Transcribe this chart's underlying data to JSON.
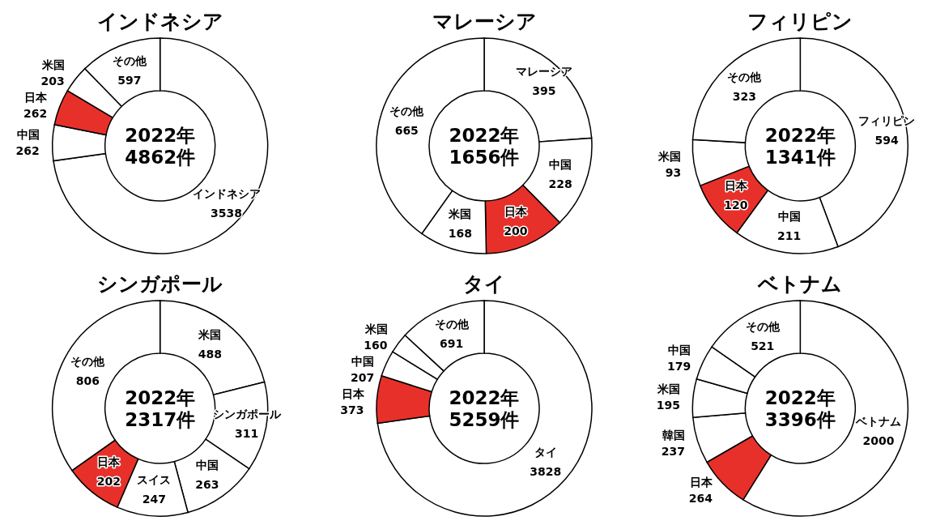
{
  "chart_data": [
    {
      "type": "donut",
      "title": "インドネシア",
      "categories": [
        "インドネシア",
        "中国",
        "日本",
        "米国",
        "その他"
      ],
      "values": [
        3538,
        262,
        262,
        203,
        597
      ],
      "colors": [
        "#ffffff",
        "#ffffff",
        "#e8302a",
        "#ffffff",
        "#ffffff"
      ],
      "data_labels": true,
      "annotations": [
        "2022年\n4862件"
      ]
    },
    {
      "type": "donut",
      "title": "マレーシア",
      "categories": [
        "マレーシア",
        "中国",
        "日本",
        "米国",
        "その他"
      ],
      "values": [
        395,
        228,
        200,
        168,
        665
      ],
      "colors": [
        "#ffffff",
        "#ffffff",
        "#e8302a",
        "#ffffff",
        "#ffffff"
      ],
      "data_labels": true,
      "annotations": [
        "2022年\n1656件"
      ]
    },
    {
      "type": "donut",
      "title": "フィリピン",
      "categories": [
        "フィリピン",
        "中国",
        "日本",
        "米国",
        "その他"
      ],
      "values": [
        594,
        211,
        120,
        93,
        323
      ],
      "colors": [
        "#ffffff",
        "#ffffff",
        "#e8302a",
        "#ffffff",
        "#ffffff"
      ],
      "data_labels": true,
      "annotations": [
        "2022年\n1341件"
      ]
    },
    {
      "type": "donut",
      "title": "シンガポール",
      "categories": [
        "米国",
        "シンガポール",
        "中国",
        "スイス",
        "日本",
        "その他"
      ],
      "values": [
        488,
        311,
        263,
        247,
        202,
        806
      ],
      "colors": [
        "#ffffff",
        "#ffffff",
        "#ffffff",
        "#ffffff",
        "#e8302a",
        "#ffffff"
      ],
      "data_labels": true,
      "annotations": [
        "2022年\n2317件"
      ]
    },
    {
      "type": "donut",
      "title": "タイ",
      "categories": [
        "タイ",
        "日本",
        "中国",
        "米国",
        "その他"
      ],
      "values": [
        3828,
        373,
        207,
        160,
        691
      ],
      "colors": [
        "#ffffff",
        "#e8302a",
        "#ffffff",
        "#ffffff",
        "#ffffff"
      ],
      "data_labels": true,
      "annotations": [
        "2022年\n5259件"
      ]
    },
    {
      "type": "donut",
      "title": "ベトナム",
      "categories": [
        "ベトナム",
        "日本",
        "韓国",
        "米国",
        "中国",
        "その他"
      ],
      "values": [
        2000,
        264,
        237,
        195,
        179,
        521
      ],
      "colors": [
        "#ffffff",
        "#e8302a",
        "#ffffff",
        "#ffffff",
        "#ffffff",
        "#ffffff"
      ],
      "data_labels": true,
      "annotations": [
        "2022年\n3396件"
      ]
    }
  ]
}
